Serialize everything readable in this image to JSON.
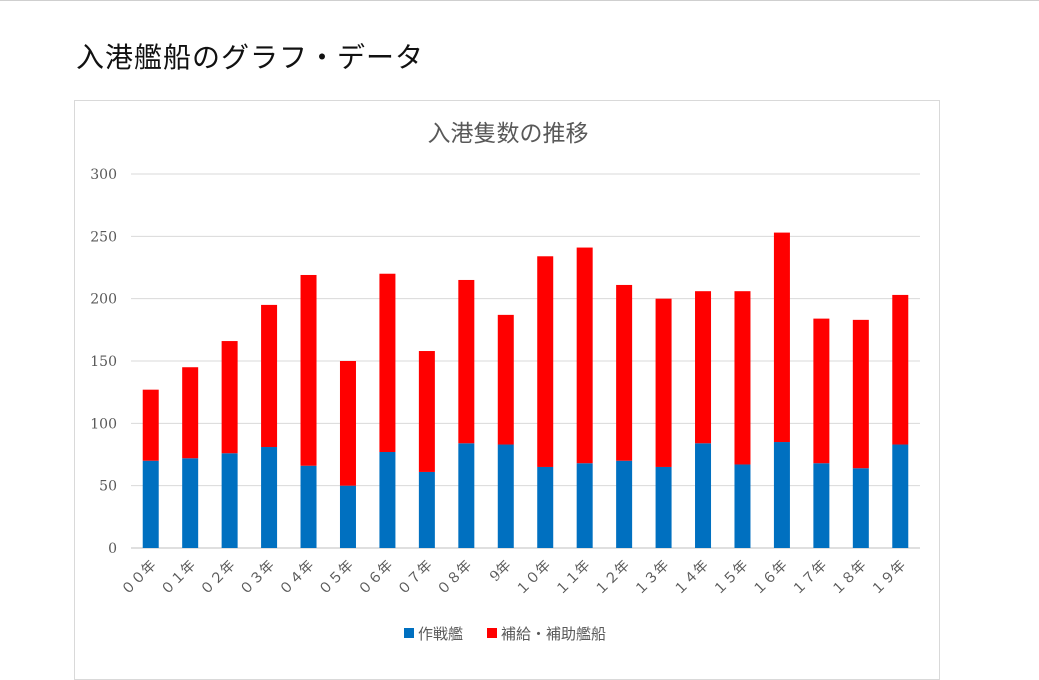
{
  "page": {
    "heading": "入港艦船のグラフ・データ"
  },
  "chart_data": {
    "type": "bar",
    "stacked": true,
    "title": "入港隻数の推移",
    "categories": [
      "００年",
      "０１年",
      "０２年",
      "０３年",
      "０４年",
      "０５年",
      "０６年",
      "０７年",
      "０８年",
      "9年",
      "１０年",
      "１１年",
      "１２年",
      "１３年",
      "１４年",
      "１５年",
      "１６年",
      "１７年",
      "１８年",
      "１９年"
    ],
    "series": [
      {
        "name": "作戦艦",
        "color": "#0070C0",
        "values": [
          70,
          72,
          76,
          81,
          66,
          50,
          77,
          61,
          84,
          83,
          65,
          68,
          70,
          65,
          84,
          67,
          85,
          68,
          64,
          83
        ]
      },
      {
        "name": "補給・補助艦船",
        "color": "#FF0000",
        "values": [
          57,
          73,
          90,
          114,
          153,
          100,
          143,
          97,
          131,
          104,
          169,
          173,
          141,
          135,
          122,
          139,
          168,
          116,
          119,
          120
        ]
      }
    ],
    "ylim": [
      0,
      300
    ],
    "yticks": [
      0,
      50,
      100,
      150,
      200,
      250,
      300
    ],
    "xlabel": "",
    "ylabel": "",
    "grid": true,
    "legend": "bottom"
  }
}
